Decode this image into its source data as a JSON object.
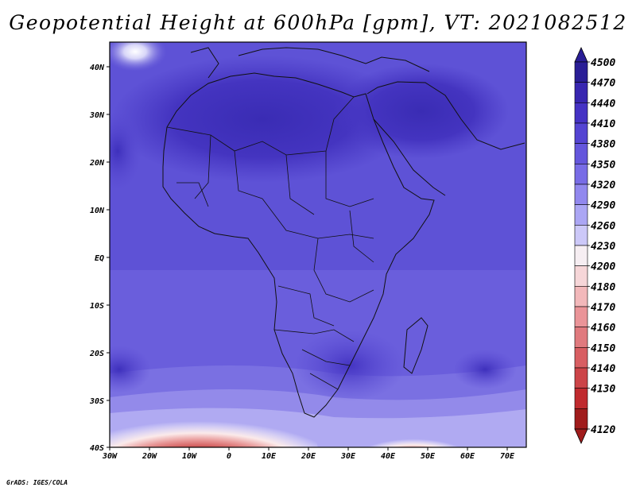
{
  "title": "Geopotential Height at 600hPa [gpm], VT: 2021082512",
  "credit": "GrADS: IGES/COLA",
  "lat_labels": [
    "40N",
    "30N",
    "20N",
    "10N",
    "EQ",
    "10S",
    "20S",
    "30S",
    "40S"
  ],
  "lon_labels": [
    "30W",
    "20W",
    "10W",
    "0",
    "10E",
    "20E",
    "30E",
    "40E",
    "50E",
    "60E",
    "70E"
  ],
  "colorbar": {
    "levels": [
      "4500",
      "4470",
      "4440",
      "4410",
      "4380",
      "4350",
      "4320",
      "4290",
      "4260",
      "4230",
      "4200",
      "4180",
      "4170",
      "4160",
      "4150",
      "4140",
      "4130",
      "4120"
    ],
    "colors": [
      "#2a1e96",
      "#3826b0",
      "#4532c4",
      "#5444d2",
      "#6456dc",
      "#786ce6",
      "#9188ee",
      "#aba6f4",
      "#ccc8f8",
      "#f6eef2",
      "#f6d6d8",
      "#f2b8ba",
      "#ea9498",
      "#e07a7e",
      "#d85e62",
      "#cc4448",
      "#c02a2e",
      "#a01c1c"
    ]
  },
  "colors": {
    "frame": "#000000",
    "base_field": "#5e52d6"
  }
}
